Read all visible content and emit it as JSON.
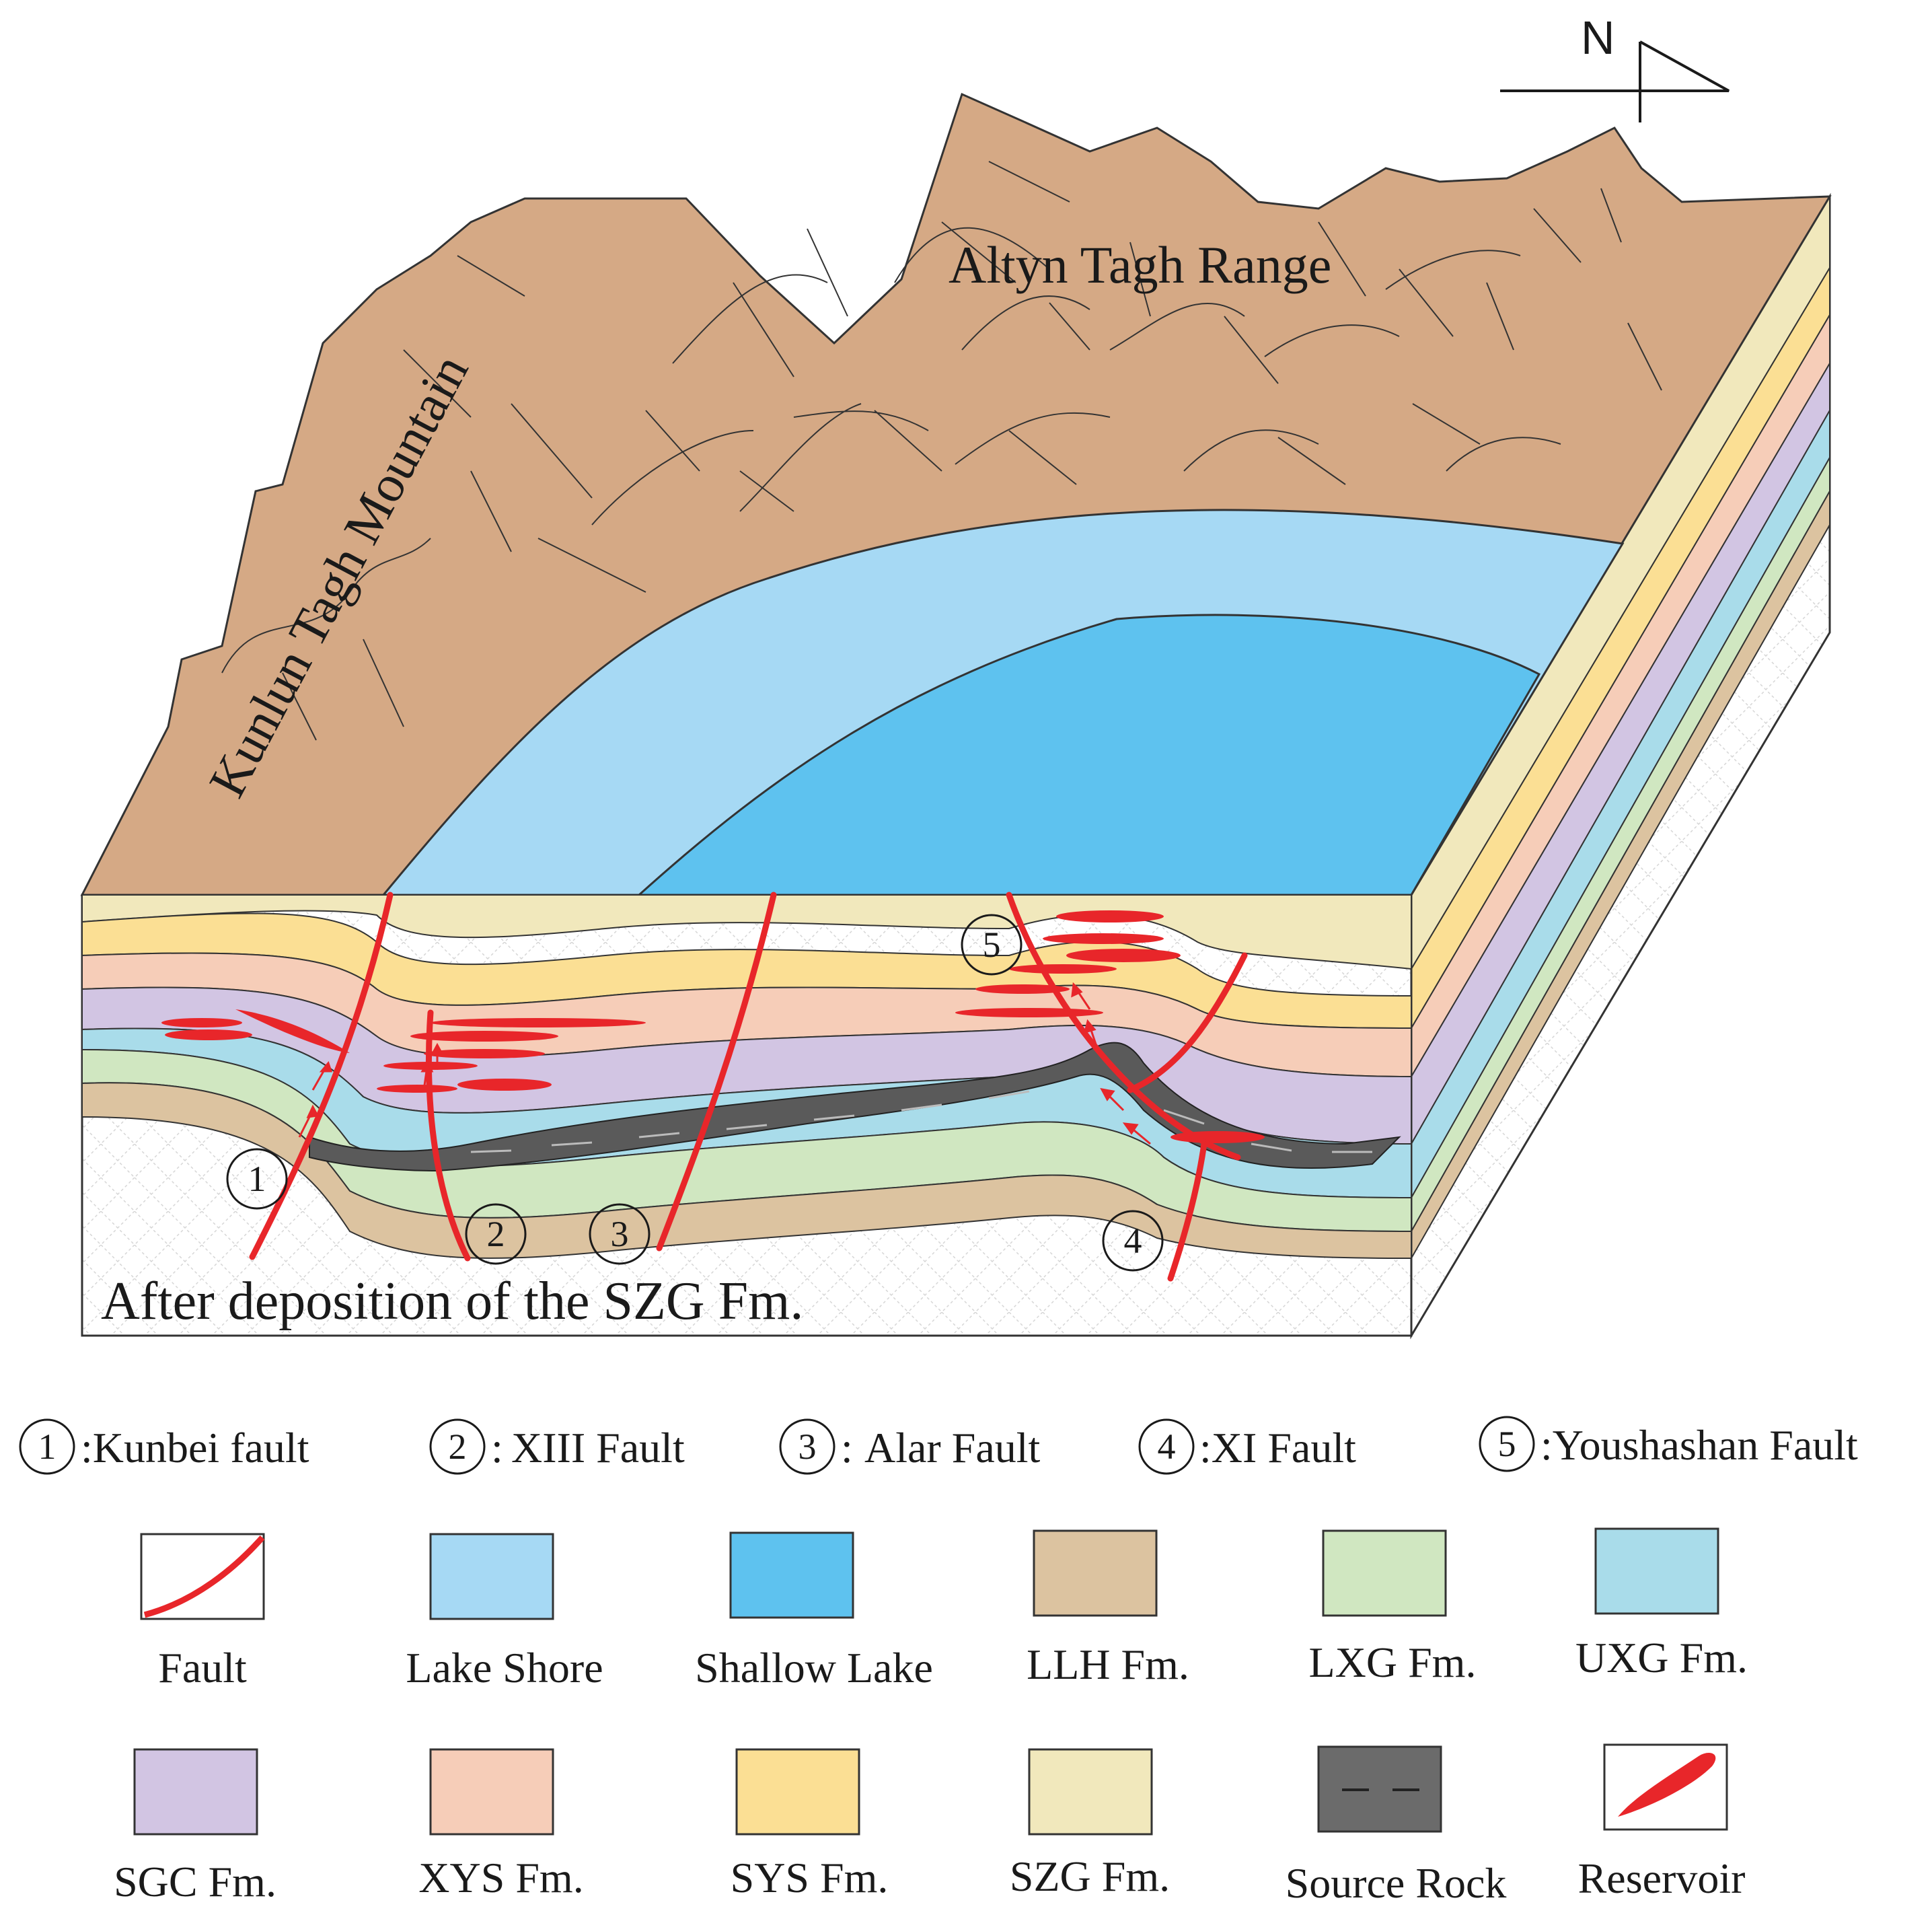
{
  "labels": {
    "north": "N",
    "altyn": "Altyn Tagh Range",
    "kunlun": "Kunlun Tagh Mountain",
    "caption": "After deposition of the SZG Fm."
  },
  "fault_markers": [
    {
      "num": "1"
    },
    {
      "num": "2"
    },
    {
      "num": "3"
    },
    {
      "num": "4"
    },
    {
      "num": "5"
    }
  ],
  "fault_legend": [
    {
      "num": "1",
      "text": ":Kunbei fault"
    },
    {
      "num": "2",
      "text": "XIII Fault"
    },
    {
      "num": "3",
      "text": "Alar Fault"
    },
    {
      "num": "4",
      "text": ":XI Fault"
    },
    {
      "num": "5",
      "text": ":Youshashan Fault"
    }
  ],
  "legend": [
    {
      "label": "Fault",
      "color": "#ffffff",
      "type": "fault"
    },
    {
      "label": "Lake Shore",
      "color": "#a6d9f4",
      "type": "swatch"
    },
    {
      "label": "Shallow Lake",
      "color": "#5ec2ef",
      "type": "swatch"
    },
    {
      "label": "LLH Fm.",
      "color": "#dcc3a0",
      "type": "swatch"
    },
    {
      "label": "LXG Fm.",
      "color": "#d0e7c1",
      "type": "swatch"
    },
    {
      "label": "UXG Fm.",
      "color": "#a9dcea",
      "type": "swatch"
    },
    {
      "label": "SGC Fm.",
      "color": "#d2c5e3",
      "type": "swatch"
    },
    {
      "label": "XYS Fm.",
      "color": "#f6cdb8",
      "type": "swatch"
    },
    {
      "label": "SYS Fm.",
      "color": "#fbdf94",
      "type": "swatch"
    },
    {
      "label": "SZG Fm.",
      "color": "#f1e8bc",
      "type": "swatch"
    },
    {
      "label": "Source Rock",
      "color": "#6b6b6b",
      "type": "source"
    },
    {
      "label": "Reservoir",
      "color": "#ffffff",
      "type": "reservoir"
    }
  ],
  "colors": {
    "mountain": "#d5a985",
    "fault": "#e8262a",
    "source_rock": "#5a5a5a",
    "basement": "#ffffff"
  }
}
